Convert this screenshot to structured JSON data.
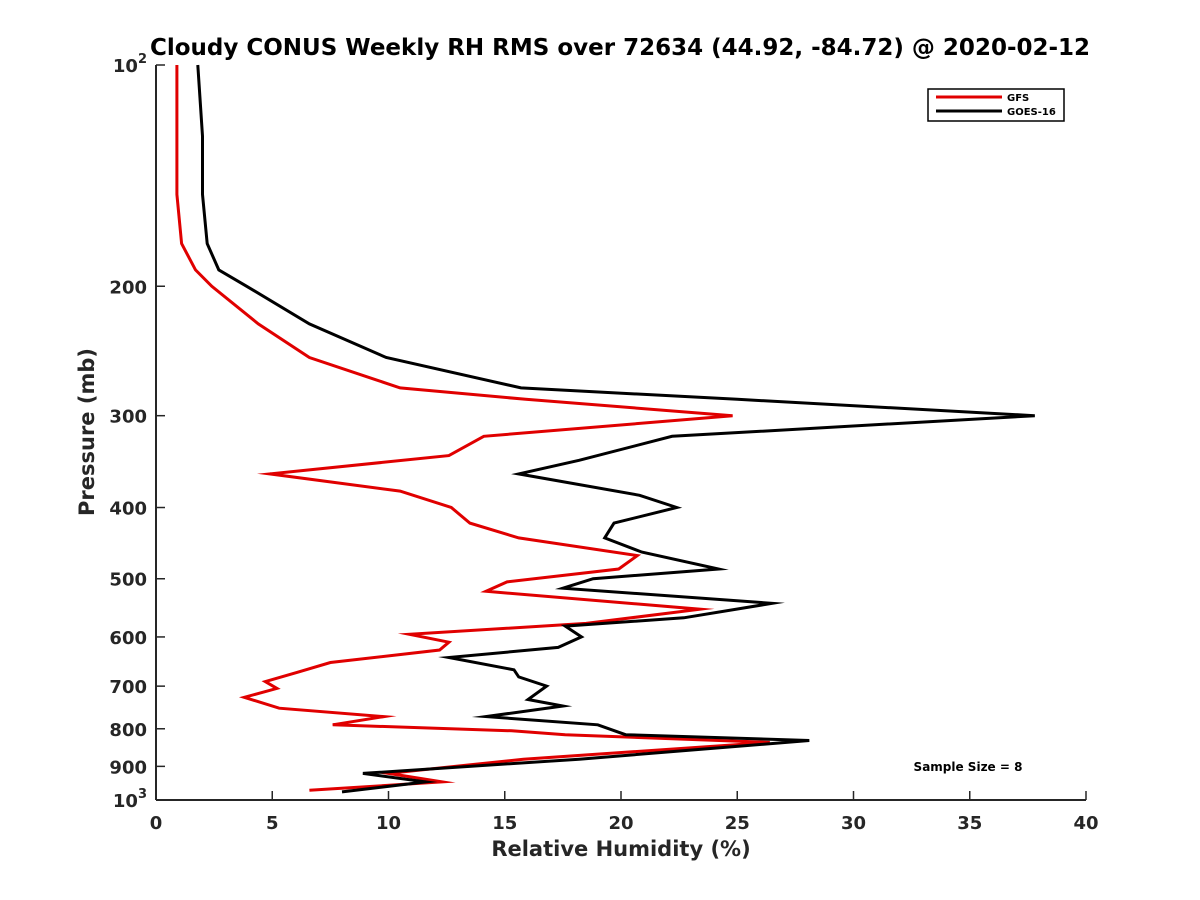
{
  "chart_data": {
    "type": "line",
    "title": "Cloudy CONUS Weekly RH RMS over 72634 (44.92, -84.72) @ 2020-02-12",
    "xlabel": "Relative Humidity (%)",
    "ylabel": "Pressure (mb)",
    "xlim": [
      0,
      40
    ],
    "ylim": [
      100,
      1000
    ],
    "y_scale": "log",
    "y_reversed": true,
    "x_ticks": [
      0,
      5,
      10,
      15,
      20,
      25,
      30,
      35,
      40
    ],
    "x_tick_labels": [
      "0",
      "5",
      "10",
      "15",
      "20",
      "25",
      "30",
      "35",
      "40"
    ],
    "y_ticks": [
      100,
      200,
      300,
      400,
      500,
      600,
      700,
      800,
      900,
      1000
    ],
    "y_tick_labels": [
      {
        "base": "10",
        "exp": "2"
      },
      {
        "base": "200",
        "exp": ""
      },
      {
        "base": "300",
        "exp": ""
      },
      {
        "base": "400",
        "exp": ""
      },
      {
        "base": "500",
        "exp": ""
      },
      {
        "base": "600",
        "exp": ""
      },
      {
        "base": "700",
        "exp": ""
      },
      {
        "base": "800",
        "exp": ""
      },
      {
        "base": "900",
        "exp": ""
      },
      {
        "base": "10",
        "exp": "3"
      }
    ],
    "grid": false,
    "legend_position": "top-right",
    "annotation": "Sample Size = 8",
    "series": [
      {
        "name": "GFS",
        "color": "#e00000",
        "points": [
          [
            0.9,
            100
          ],
          [
            0.9,
            125
          ],
          [
            0.9,
            150
          ],
          [
            1.1,
            175
          ],
          [
            1.7,
            190
          ],
          [
            2.4,
            200
          ],
          [
            4.4,
            225
          ],
          [
            6.6,
            250
          ],
          [
            10.5,
            275
          ],
          [
            15.9,
            285
          ],
          [
            24.8,
            300
          ],
          [
            14.1,
            320
          ],
          [
            12.6,
            340
          ],
          [
            4.9,
            360
          ],
          [
            10.5,
            380
          ],
          [
            12.7,
            400
          ],
          [
            13.5,
            420
          ],
          [
            15.6,
            440
          ],
          [
            20.7,
            465
          ],
          [
            19.9,
            485
          ],
          [
            15.1,
            505
          ],
          [
            14.2,
            520
          ],
          [
            23.4,
            550
          ],
          [
            18.5,
            575
          ],
          [
            10.9,
            595
          ],
          [
            12.6,
            610
          ],
          [
            12.2,
            625
          ],
          [
            7.5,
            650
          ],
          [
            6.1,
            670
          ],
          [
            4.7,
            690
          ],
          [
            5.2,
            705
          ],
          [
            3.8,
            725
          ],
          [
            5.3,
            750
          ],
          [
            9.8,
            770
          ],
          [
            7.6,
            790
          ],
          [
            15.3,
            805
          ],
          [
            17.6,
            815
          ],
          [
            26.4,
            835
          ],
          [
            15.8,
            880
          ],
          [
            10.0,
            920
          ],
          [
            12.3,
            945
          ],
          [
            6.6,
            970
          ]
        ]
      },
      {
        "name": "GOES-16",
        "color": "#000000",
        "points": [
          [
            1.8,
            100
          ],
          [
            2.0,
            125
          ],
          [
            2.0,
            150
          ],
          [
            2.2,
            175
          ],
          [
            2.7,
            190
          ],
          [
            3.9,
            200
          ],
          [
            6.6,
            225
          ],
          [
            9.9,
            250
          ],
          [
            15.7,
            275
          ],
          [
            25.0,
            285
          ],
          [
            37.8,
            300
          ],
          [
            22.2,
            320
          ],
          [
            18.2,
            345
          ],
          [
            15.6,
            360
          ],
          [
            20.8,
            385
          ],
          [
            22.4,
            400
          ],
          [
            19.7,
            420
          ],
          [
            19.3,
            440
          ],
          [
            20.9,
            460
          ],
          [
            24.2,
            485
          ],
          [
            18.8,
            500
          ],
          [
            17.5,
            515
          ],
          [
            26.5,
            540
          ],
          [
            22.7,
            565
          ],
          [
            17.6,
            580
          ],
          [
            18.3,
            600
          ],
          [
            17.3,
            620
          ],
          [
            12.6,
            640
          ],
          [
            15.4,
            665
          ],
          [
            15.6,
            680
          ],
          [
            16.8,
            700
          ],
          [
            16.0,
            730
          ],
          [
            17.5,
            745
          ],
          [
            14.2,
            770
          ],
          [
            19.0,
            790
          ],
          [
            20.2,
            815
          ],
          [
            28.1,
            830
          ],
          [
            18.2,
            880
          ],
          [
            8.9,
            920
          ],
          [
            11.6,
            945
          ],
          [
            8.0,
            975
          ]
        ]
      }
    ]
  }
}
